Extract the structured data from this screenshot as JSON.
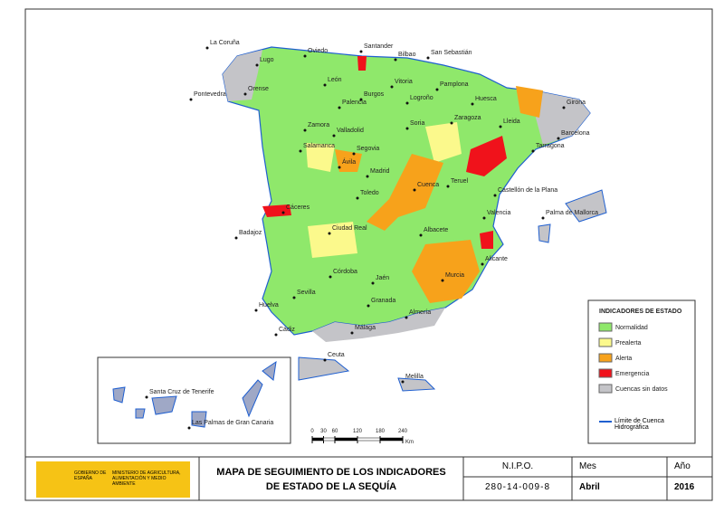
{
  "cities": [
    "La Coruña",
    "Lugo",
    "Oviedo",
    "Santander",
    "Bilbao",
    "San Sebastián",
    "Pontevedra",
    "Orense",
    "León",
    "Vitoria",
    "Pamplona",
    "Burgos",
    "Logroño",
    "Huesca",
    "Palencia",
    "Girona",
    "Zamora",
    "Valladolid",
    "Soria",
    "Zaragoza",
    "Lleida",
    "Barcelona",
    "Tarragona",
    "Salamanca",
    "Segovia",
    "Ávila",
    "Madrid",
    "Teruel",
    "Castellón de la Plana",
    "Cuenca",
    "Toledo",
    "Palma de Mallorca",
    "Cáceres",
    "Valencia",
    "Badajoz",
    "Ciudad Real",
    "Albacete",
    "Alicante",
    "Córdoba",
    "Jaén",
    "Murcia",
    "Sevilla",
    "Granada",
    "Huelva",
    "Almería",
    "Cádiz",
    "Málaga",
    "Ceuta",
    "Melilla",
    "Santa Cruz de Tenerife",
    "Las Palmas de Gran Canaria"
  ],
  "legend": {
    "title": "INDICADORES DE ESTADO",
    "items": [
      {
        "label": "Normalidad",
        "color": "#8fe86b"
      },
      {
        "label": "Prealerta",
        "color": "#fbf98c"
      },
      {
        "label": "Alerta",
        "color": "#f7a21b"
      },
      {
        "label": "Emergencia",
        "color": "#f0121b"
      },
      {
        "label": "Cuencas sin datos",
        "color": "#c4c4c8"
      }
    ],
    "boundary": "Límite de Cuenca Hidrográfica"
  },
  "scale_bar": {
    "ticks": [
      0,
      30,
      60,
      120,
      180,
      240
    ],
    "unit": "Km"
  },
  "footer": {
    "gov": "GOBIERNO DE ESPAÑA",
    "ministry": "MINISTERIO DE AGRICULTURA, ALIMENTACIÓN Y MEDIO AMBIENTE",
    "title_1": "MAPA DE SEGUIMIENTO DE LOS INDICADORES",
    "title_2": "DE ESTADO DE LA SEQUÍA",
    "nipo_label": "N.I.P.O.",
    "nipo": "280-14-009-8",
    "month_label": "Mes",
    "month": "Abril",
    "year_label": "Año",
    "year": 2016
  }
}
